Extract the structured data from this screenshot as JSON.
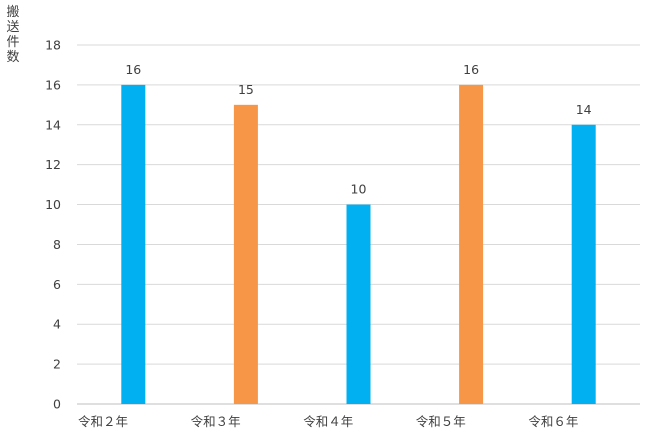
{
  "chart_data": {
    "type": "bar",
    "title": "",
    "xlabel": "",
    "ylabel": "搬送件数",
    "categories": [
      "令和２年",
      "令和３年",
      "令和４年",
      "令和５年",
      "令和６年"
    ],
    "values": [
      16,
      15,
      10,
      16,
      14
    ],
    "bar_colors": [
      "#00b0f0",
      "#f79646",
      "#00b0f0",
      "#f79646",
      "#00b0f0"
    ],
    "ylim": [
      0,
      18
    ],
    "yticks": [
      0,
      2,
      4,
      6,
      8,
      10,
      12,
      14,
      16,
      18
    ],
    "data_labels": true,
    "grid": true,
    "legend": "none"
  }
}
